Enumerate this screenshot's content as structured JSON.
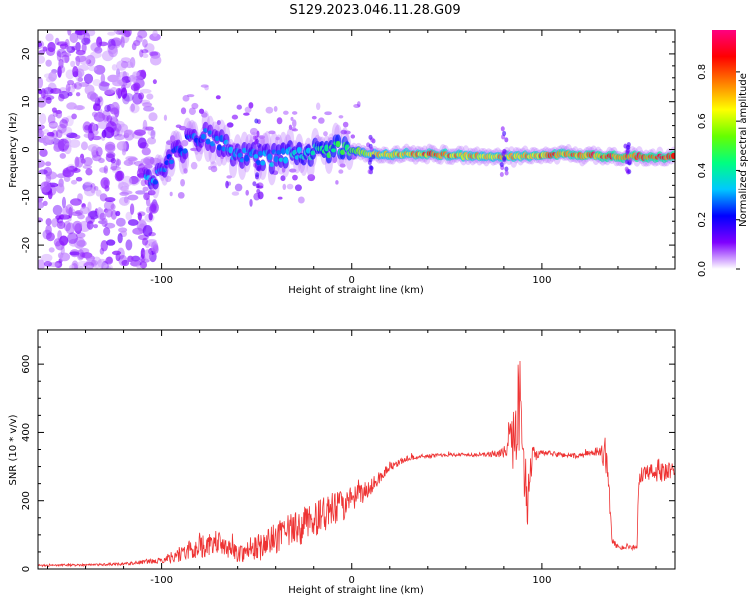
{
  "title": "S129.2023.046.11.28.G09",
  "chart_data": [
    {
      "type": "heatmap",
      "name": "spectrogram",
      "xlabel": "Height of straight line (km)",
      "ylabel": "Frequency (Hz)",
      "xlim": [
        -165,
        170
      ],
      "ylim": [
        -25,
        25
      ],
      "xticks": [
        -100,
        0,
        100
      ],
      "yticks": [
        -20,
        -10,
        0,
        10,
        20
      ],
      "colorbar": {
        "label": "Normalized spectral amplitude",
        "range": [
          0,
          0.97
        ],
        "ticks": [
          "0.0",
          "0.2",
          "0.4",
          "0.6",
          "0.8"
        ],
        "colormap": [
          "#ffffff",
          "#7f00ff",
          "#0000ff",
          "#00c8ff",
          "#00ff80",
          "#66ff00",
          "#ffff00",
          "#ff8000",
          "#ff0000",
          "#ff0080"
        ]
      },
      "ridge": [
        {
          "x": -105,
          "f": -7,
          "a": 0.35
        },
        {
          "x": -95,
          "f": -2,
          "a": 0.3
        },
        {
          "x": -85,
          "f": 2,
          "a": 0.3
        },
        {
          "x": -75,
          "f": 3,
          "a": 0.3
        },
        {
          "x": -60,
          "f": -1,
          "a": 0.35
        },
        {
          "x": -45,
          "f": -2,
          "a": 0.35
        },
        {
          "x": -30,
          "f": -1,
          "a": 0.4
        },
        {
          "x": -15,
          "f": 0,
          "a": 0.5
        },
        {
          "x": 0,
          "f": 0,
          "a": 0.55
        },
        {
          "x": 10,
          "f": -1,
          "a": 0.75
        },
        {
          "x": 40,
          "f": -1,
          "a": 0.9
        },
        {
          "x": 70,
          "f": -1.5,
          "a": 0.8
        },
        {
          "x": 90,
          "f": -1.5,
          "a": 0.85
        },
        {
          "x": 110,
          "f": -1,
          "a": 0.9
        },
        {
          "x": 140,
          "f": -1.5,
          "a": 0.95
        },
        {
          "x": 170,
          "f": -1.5,
          "a": 0.95
        }
      ]
    },
    {
      "type": "line",
      "name": "snr",
      "xlabel": "Height of straight line (km)",
      "ylabel": "SNR (10 * v/v)",
      "xlim": [
        -165,
        170
      ],
      "ylim": [
        0,
        700
      ],
      "xticks": [
        -100,
        0,
        100
      ],
      "yticks": [
        0,
        200,
        400,
        600
      ],
      "color": "#ee3333",
      "series": [
        {
          "name": "SNR",
          "x": [
            -165,
            -140,
            -120,
            -100,
            -90,
            -80,
            -70,
            -60,
            -50,
            -40,
            -30,
            -20,
            -10,
            0,
            10,
            20,
            30,
            50,
            70,
            80,
            85,
            88,
            90,
            93,
            95,
            100,
            110,
            120,
            125,
            130,
            134,
            137,
            140,
            150,
            151,
            155,
            160,
            165,
            170
          ],
          "y": [
            10,
            12,
            15,
            25,
            45,
            65,
            75,
            45,
            60,
            90,
            115,
            145,
            170,
            200,
            240,
            300,
            325,
            335,
            335,
            340,
            380,
            500,
            340,
            200,
            335,
            340,
            335,
            330,
            340,
            340,
            335,
            80,
            65,
            60,
            280,
            280,
            285,
            280,
            290
          ],
          "noise": [
            3,
            3,
            4,
            8,
            25,
            35,
            30,
            25,
            40,
            45,
            55,
            50,
            55,
            40,
            25,
            12,
            8,
            5,
            6,
            15,
            90,
            160,
            120,
            90,
            25,
            8,
            8,
            8,
            8,
            8,
            60,
            10,
            8,
            6,
            40,
            25,
            30,
            30,
            25
          ]
        }
      ]
    }
  ]
}
